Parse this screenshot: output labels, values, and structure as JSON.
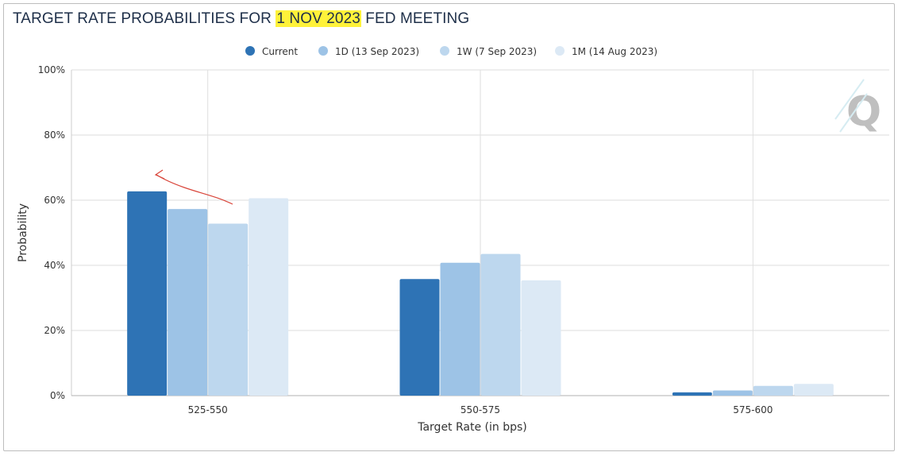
{
  "title": {
    "prefix": "TARGET RATE PROBABILITIES FOR ",
    "highlight": "1 NOV 2023",
    "suffix": " FED MEETING"
  },
  "colors": {
    "highlight": "#fff23a",
    "annotation": "#d9453a",
    "grid": "#dedede",
    "watermark": "#bfbfbf",
    "series": [
      "#2e73b5",
      "#9dc3e6",
      "#bdd7ee",
      "#dce9f5"
    ]
  },
  "watermark": {
    "letter": "Q"
  },
  "chart_data": {
    "type": "bar",
    "title": "TARGET RATE PROBABILITIES FOR 1 NOV 2023 FED MEETING",
    "xlabel": "Target Rate (in bps)",
    "ylabel": "Probability",
    "ylim": [
      0,
      100
    ],
    "yticks": [
      "0%",
      "20%",
      "40%",
      "60%",
      "80%",
      "100%"
    ],
    "grid": true,
    "legend_position": "top",
    "categories": [
      "525-550",
      "550-575",
      "575-600"
    ],
    "series": [
      {
        "name": "Current",
        "values": [
          62.7,
          35.8,
          1.0
        ]
      },
      {
        "name": "1D (13 Sep 2023)",
        "values": [
          57.3,
          40.8,
          1.6
        ]
      },
      {
        "name": "1W (7 Sep 2023)",
        "values": [
          52.8,
          43.5,
          3.0
        ]
      },
      {
        "name": "1M (14 Aug 2023)",
        "values": [
          60.6,
          35.4,
          3.6
        ]
      }
    ]
  }
}
